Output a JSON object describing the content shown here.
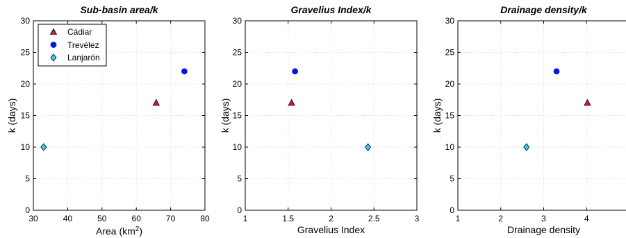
{
  "colors": {
    "cadiar": "#d2134f",
    "trevelez": "#0a14e0",
    "lanjaron": "#33ccff",
    "grid": "#d9d9d9",
    "axis": "#000000"
  },
  "chart_data": [
    {
      "type": "scatter",
      "title": "Sub-basin area/k",
      "xlabel": "Area (km",
      "xlabel_sup": "2",
      "xlabel_end": ")",
      "ylabel": "k (days)",
      "xlim": [
        30,
        80
      ],
      "ylim": [
        0,
        30
      ],
      "xticks": [
        "30",
        "40",
        "50",
        "60",
        "70",
        "80"
      ],
      "yticks": [
        "0",
        "5",
        "10",
        "15",
        "20",
        "25",
        "30"
      ],
      "grid": true,
      "legend": "top-left",
      "series": [
        {
          "name": "Cádiar",
          "marker": "triangle",
          "x": [
            65.8
          ],
          "y": [
            17
          ]
        },
        {
          "name": "Trevélez",
          "marker": "circle",
          "x": [
            74
          ],
          "y": [
            22
          ]
        },
        {
          "name": "Lanjarón",
          "marker": "diamond",
          "x": [
            33
          ],
          "y": [
            10
          ]
        }
      ]
    },
    {
      "type": "scatter",
      "title": "Gravelius Index/k",
      "xlabel": "Gravelius Index",
      "ylabel": "k (days)",
      "xlim": [
        1,
        3
      ],
      "ylim": [
        0,
        30
      ],
      "xticks": [
        "1",
        "1.5",
        "2",
        "2.5",
        "3"
      ],
      "yticks": [
        "0",
        "5",
        "10",
        "15",
        "20",
        "25",
        "30"
      ],
      "grid": true,
      "series": [
        {
          "name": "Cádiar",
          "marker": "triangle",
          "x": [
            1.54
          ],
          "y": [
            17
          ]
        },
        {
          "name": "Trevélez",
          "marker": "circle",
          "x": [
            1.58
          ],
          "y": [
            22
          ]
        },
        {
          "name": "Lanjarón",
          "marker": "diamond",
          "x": [
            2.43
          ],
          "y": [
            10
          ]
        }
      ]
    },
    {
      "type": "scatter",
      "title": "Drainage density/k",
      "xlabel": "Drainage density",
      "ylabel": "k (days)",
      "xlim": [
        1,
        5
      ],
      "ylim": [
        0,
        30
      ],
      "xticks": [
        "1",
        "2",
        "3",
        "4"
      ],
      "yticks": [
        "0",
        "5",
        "10",
        "15",
        "20",
        "25",
        "30"
      ],
      "grid": true,
      "series": [
        {
          "name": "Cádiar",
          "marker": "triangle",
          "x": [
            4.02
          ],
          "y": [
            17
          ]
        },
        {
          "name": "Trevélez",
          "marker": "circle",
          "x": [
            3.3
          ],
          "y": [
            22
          ]
        },
        {
          "name": "Lanjarón",
          "marker": "diamond",
          "x": [
            2.6
          ],
          "y": [
            10
          ]
        }
      ]
    }
  ]
}
